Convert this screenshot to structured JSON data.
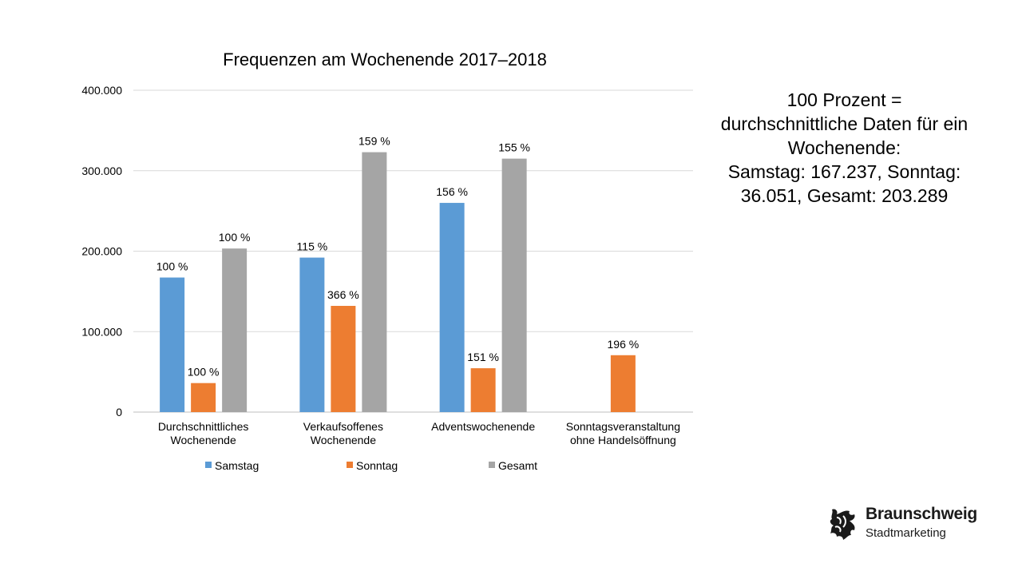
{
  "chart_data": {
    "type": "bar",
    "title": "Frequenzen am Wochenende 2017–2018",
    "categories": [
      [
        "Durchschnittliches",
        "Wochenende"
      ],
      [
        "Verkaufsoffenes",
        "Wochenende"
      ],
      [
        "Adventswochenende"
      ],
      [
        "Sonntagsveranstaltung",
        "ohne Handelsöffnung"
      ]
    ],
    "series": [
      {
        "name": "Samstag",
        "color": "#5b9bd5",
        "values": [
          167237,
          192000,
          260000,
          null
        ],
        "labels": [
          "100 %",
          "115 %",
          "156 %",
          ""
        ]
      },
      {
        "name": "Sonntag",
        "color": "#ed7d31",
        "values": [
          36051,
          132000,
          54500,
          70700
        ],
        "labels": [
          "100 %",
          "366 %",
          "151 %",
          "196 %"
        ]
      },
      {
        "name": "Gesamt",
        "color": "#a5a5a5",
        "values": [
          203289,
          323000,
          315000,
          null
        ],
        "labels": [
          "100 %",
          "159 %",
          "155 %",
          ""
        ]
      }
    ],
    "ylim": [
      0,
      400000
    ],
    "yticks": [
      0,
      100000,
      200000,
      300000,
      400000
    ],
    "ytick_labels": [
      "0",
      "100.000",
      "200.000",
      "300.000",
      "400.000"
    ],
    "grid": true,
    "legend": "bottom"
  },
  "note": {
    "lines": [
      "100 Prozent =",
      "durchschnittliche Daten für ein",
      "Wochenende:",
      "Samstag: 167.237, Sonntag:",
      "36.051, Gesamt: 203.289"
    ]
  },
  "logo": {
    "name": "Braunschweig",
    "subtitle": "Stadtmarketing",
    "icon": "lion-icon"
  }
}
